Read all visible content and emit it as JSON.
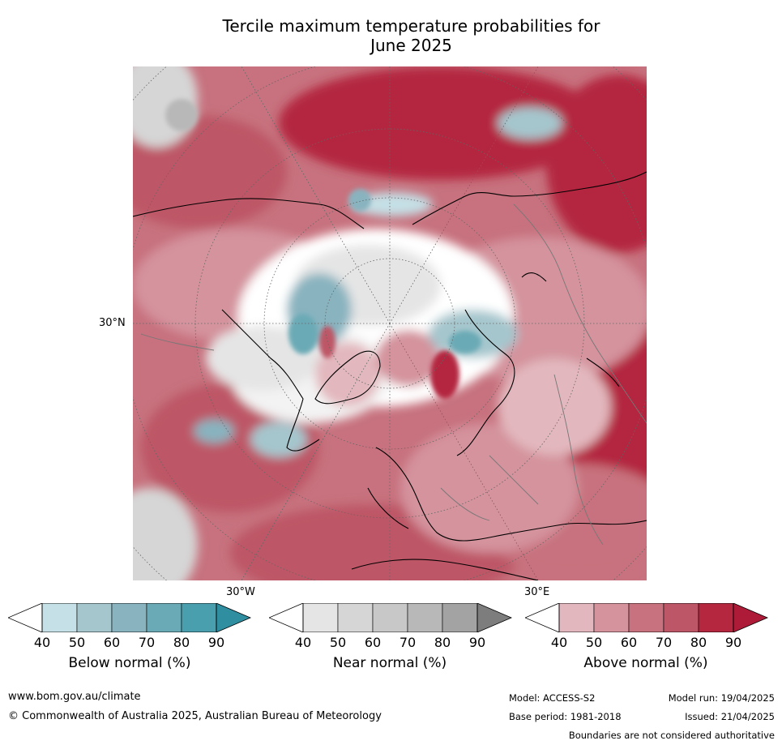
{
  "title_line1": "Tercile maximum temperature probabilities for",
  "title_line2": "June 2025",
  "map": {
    "lat_label": "30°N",
    "lon_label_west": "30°W",
    "lon_label_east": "30°E",
    "colors": {
      "above": [
        "#e2b7bd",
        "#d4939d",
        "#c7727e",
        "#bd5666",
        "#b4273f",
        "#ad1b38"
      ],
      "below": [
        "#c5e0e6",
        "#a5c6cd",
        "#88b3bf",
        "#6aaab6",
        "#4a9fae",
        "#2f8ea0"
      ],
      "near": [
        "#e5e5e5",
        "#d6d6d6",
        "#c8c8c8",
        "#b8b8b8",
        "#a3a3a3",
        "#7d7d7d"
      ]
    }
  },
  "colorbars": [
    {
      "label": "Below normal (%)",
      "ticks": [
        "40",
        "50",
        "60",
        "70",
        "80",
        "90"
      ],
      "colors": [
        "#c5e0e6",
        "#a5c6cd",
        "#88b3bf",
        "#6aaab6",
        "#4a9fae"
      ],
      "extend_color": "#2f8ea0"
    },
    {
      "label": "Near normal (%)",
      "ticks": [
        "40",
        "50",
        "60",
        "70",
        "80",
        "90"
      ],
      "colors": [
        "#e5e5e5",
        "#d6d6d6",
        "#c8c8c8",
        "#b8b8b8",
        "#a3a3a3"
      ],
      "extend_color": "#7d7d7d"
    },
    {
      "label": "Above normal (%)",
      "ticks": [
        "40",
        "50",
        "60",
        "70",
        "80",
        "90"
      ],
      "colors": [
        "#e2b7bd",
        "#d4939d",
        "#c7727e",
        "#bd5666",
        "#b4273f"
      ],
      "extend_color": "#ad1b38"
    }
  ],
  "footer": {
    "website": "www.bom.gov.au/climate",
    "copyright": "© Commonwealth of Australia 2025, Australian Bureau of Meteorology",
    "model": "Model: ACCESS-S2",
    "model_run": "Model run: 19/04/2025",
    "base_period": "Base period: 1981-2018",
    "issued": "Issued: 21/04/2025",
    "disclaimer": "Boundaries are not considered authoritative"
  }
}
